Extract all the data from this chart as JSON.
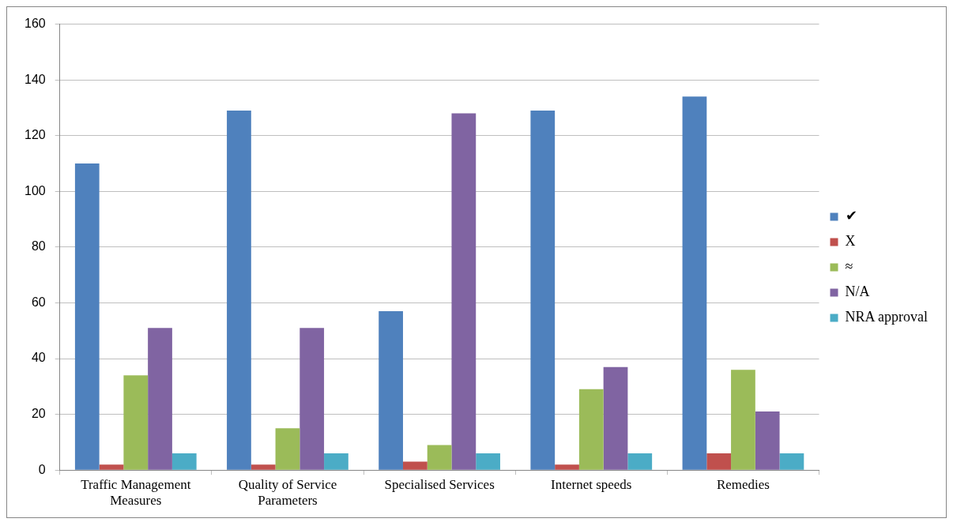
{
  "chart_data": {
    "type": "bar",
    "categories": [
      "Traffic Management Measures",
      "Quality of Service Parameters",
      "Specialised Services",
      "Internet speeds",
      "Remedies"
    ],
    "series": [
      {
        "name": "✔",
        "color": "#4f81bd",
        "values": [
          110,
          129,
          57,
          129,
          134
        ]
      },
      {
        "name": "X",
        "color": "#c0504d",
        "values": [
          2,
          2,
          3,
          2,
          6
        ]
      },
      {
        "name": "≈",
        "color": "#9bbb59",
        "values": [
          34,
          15,
          9,
          29,
          36
        ]
      },
      {
        "name": "N/A",
        "color": "#8064a2",
        "values": [
          51,
          51,
          128,
          37,
          21
        ]
      },
      {
        "name": "NRA approval",
        "color": "#4bacc6",
        "values": [
          6,
          6,
          6,
          6,
          6
        ]
      }
    ],
    "ylim": [
      0,
      160
    ],
    "yticks": [
      0,
      20,
      40,
      60,
      80,
      100,
      120,
      140,
      160
    ],
    "grid": "y",
    "legend": "right"
  }
}
